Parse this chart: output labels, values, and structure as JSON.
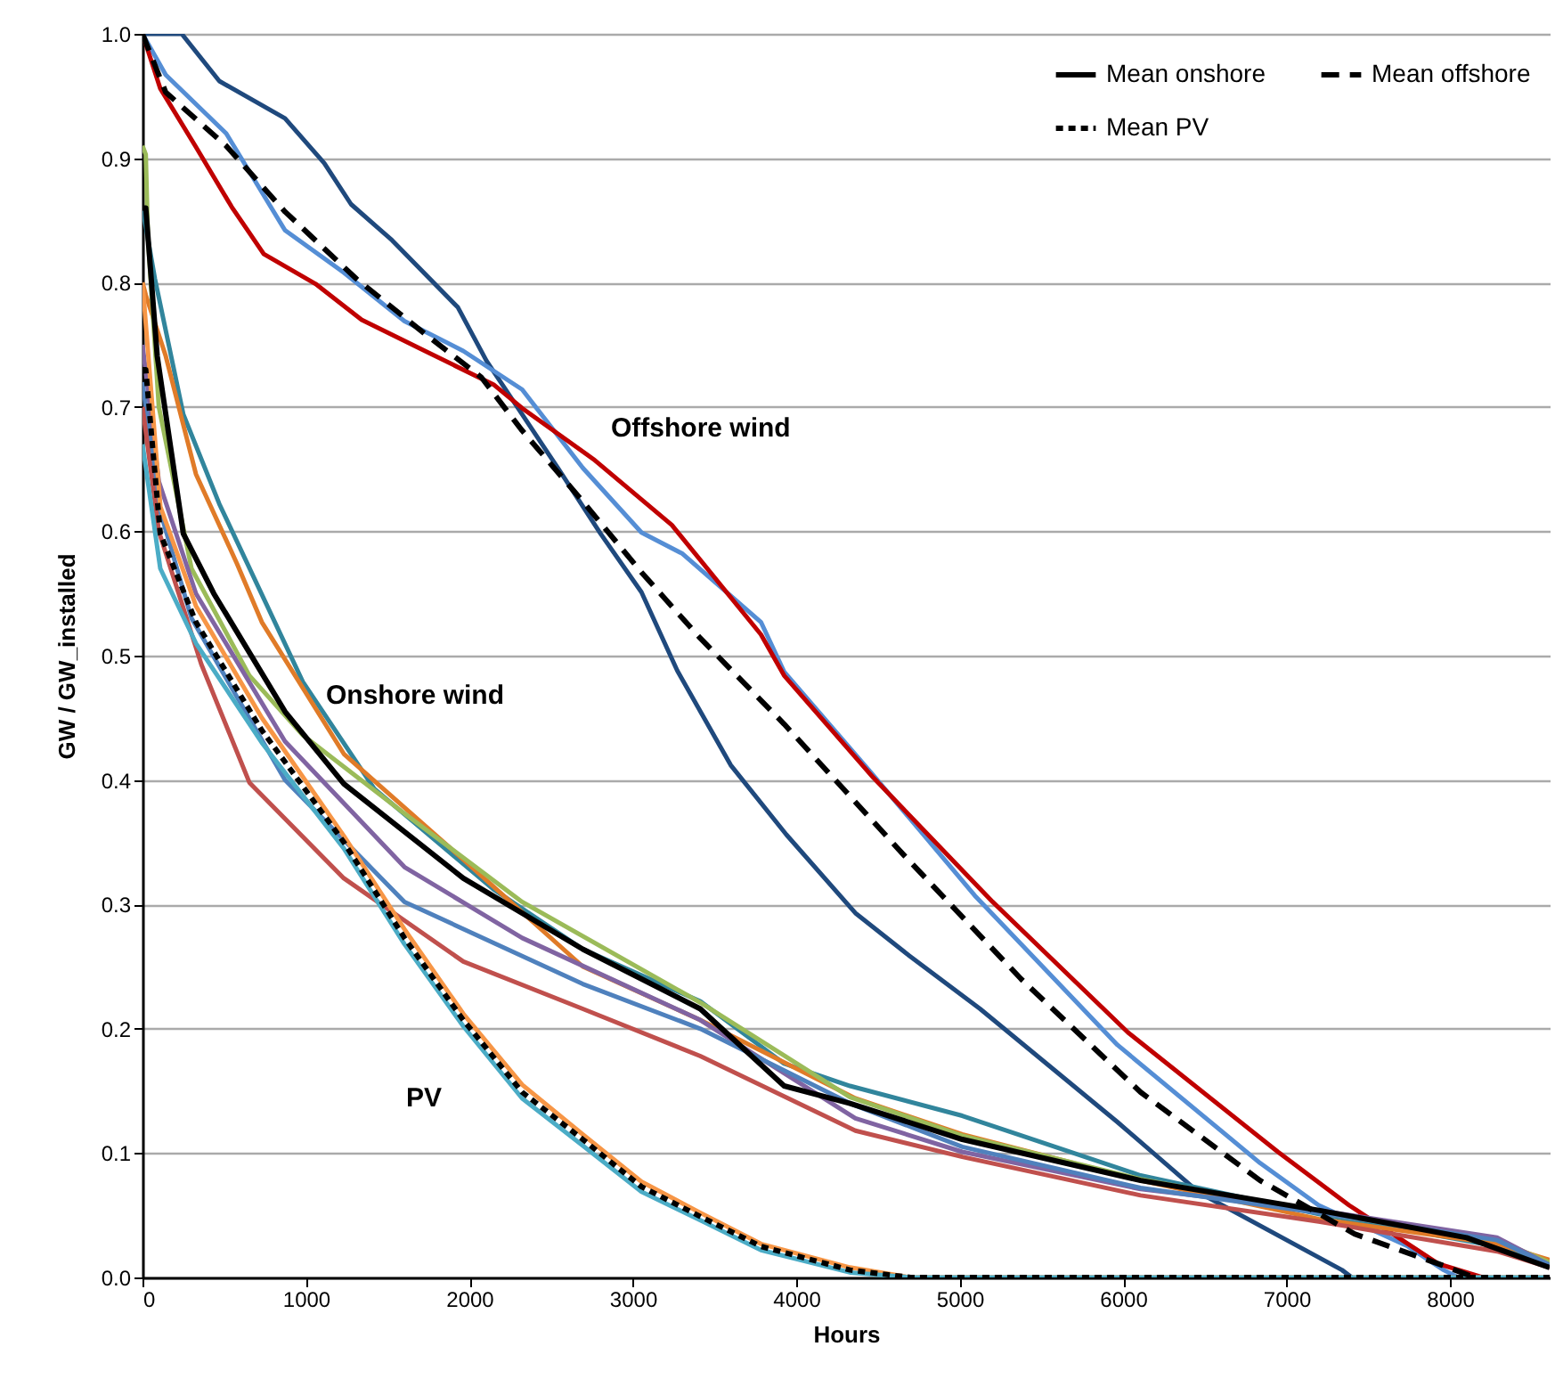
{
  "chart_data": {
    "type": "line",
    "xlabel": "Hours",
    "ylabel": "GW / GW_installed",
    "xlim": [
      0,
      8610
    ],
    "ylim": [
      0,
      1
    ],
    "xticks": [
      0,
      1000,
      2000,
      3000,
      4000,
      5000,
      6000,
      7000,
      8000
    ],
    "yticks": [
      {
        "value": 0,
        "label": "0.0"
      },
      0.1,
      0.2,
      0.3,
      0.4,
      0.5,
      0.6,
      0.7,
      0.8,
      0.9,
      {
        "value": 1,
        "label": "1.0"
      }
    ],
    "grid": "y",
    "legend": "top right",
    "annotations": [
      "Offshore wind",
      "Onshore wind",
      "PV"
    ],
    "series": [
      {
        "color": "#1f497d",
        "x": [
          0,
          240,
          470,
          872,
          1112,
          1276,
          1527,
          1930,
          2105,
          2323,
          2541,
          2803,
          3053,
          3272,
          3599,
          3940,
          4362,
          4689,
          5125,
          5965,
          6467,
          7339,
          7400
        ],
        "values": [
          1,
          1,
          0.962,
          0.932,
          0.896,
          0.863,
          0.834,
          0.78,
          0.737,
          0.694,
          0.651,
          0.598,
          0.551,
          0.488,
          0.412,
          0.356,
          0.293,
          0.259,
          0.216,
          0.125,
          0.068,
          0.006,
          0
        ]
      },
      {
        "color": "#558ed5",
        "x": [
          0,
          142,
          512,
          872,
          1232,
          1603,
          1963,
          2323,
          2694,
          3053,
          3304,
          3784,
          3926,
          4471,
          5093,
          5965,
          6838,
          7197,
          7743,
          7961,
          8050
        ],
        "values": [
          1,
          0.967,
          0.92,
          0.842,
          0.808,
          0.769,
          0.745,
          0.714,
          0.651,
          0.599,
          0.582,
          0.527,
          0.487,
          0.404,
          0.307,
          0.187,
          0.092,
          0.058,
          0.025,
          0.006,
          0
        ]
      },
      {
        "color": "#c00000",
        "x": [
          0,
          109,
          327,
          545,
          742,
          1058,
          1341,
          1712,
          2148,
          2323,
          2759,
          3239,
          3784,
          3926,
          4471,
          5202,
          6030,
          6947,
          7383,
          7928,
          8200
        ],
        "values": [
          1,
          0.956,
          0.909,
          0.861,
          0.823,
          0.799,
          0.77,
          0.746,
          0.718,
          0.699,
          0.658,
          0.605,
          0.517,
          0.484,
          0.402,
          0.302,
          0.197,
          0.101,
          0.058,
          0.011,
          0
        ]
      },
      {
        "color": "#31859c",
        "x": [
          0,
          76,
          250,
          470,
          981,
          1418,
          2148,
          2694,
          3413,
          3926,
          4329,
          5016,
          6107,
          7197,
          8288,
          8610
        ],
        "values": [
          0.86,
          0.803,
          0.694,
          0.622,
          0.479,
          0.393,
          0.312,
          0.264,
          0.222,
          0.172,
          0.154,
          0.13,
          0.082,
          0.051,
          0.025,
          0.012
        ]
      },
      {
        "color": "#e07b28",
        "x": [
          0,
          20,
          142,
          327,
          578,
          730,
          1232,
          1963,
          2694,
          3413,
          4362,
          5016,
          6107,
          7197,
          8288,
          8610
        ],
        "values": [
          0.8,
          0.79,
          0.741,
          0.646,
          0.574,
          0.527,
          0.421,
          0.336,
          0.25,
          0.207,
          0.144,
          0.115,
          0.078,
          0.047,
          0.027,
          0.014
        ]
      },
      {
        "color": "#9bbb59",
        "x": [
          0,
          20,
          33,
          100,
          300,
          654,
          981,
          1603,
          2323,
          3413,
          4329,
          5016,
          6107,
          7197,
          8288,
          8610
        ],
        "values": [
          0.91,
          0.903,
          0.837,
          0.7,
          0.57,
          0.484,
          0.436,
          0.373,
          0.302,
          0.221,
          0.145,
          0.114,
          0.079,
          0.052,
          0.03,
          0.012
        ]
      },
      {
        "color": "#8064a2",
        "x": [
          0,
          100,
          327,
          872,
          1603,
          2323,
          3413,
          4362,
          5016,
          6107,
          7197,
          8288,
          8610
        ],
        "values": [
          0.75,
          0.64,
          0.55,
          0.431,
          0.33,
          0.273,
          0.207,
          0.128,
          0.101,
          0.071,
          0.054,
          0.032,
          0.01
        ]
      },
      {
        "color": "#4f81bd",
        "x": [
          0,
          100,
          300,
          872,
          1603,
          2694,
          3413,
          4329,
          5016,
          6107,
          7197,
          8288,
          8610
        ],
        "values": [
          0.72,
          0.62,
          0.53,
          0.4,
          0.302,
          0.236,
          0.2,
          0.14,
          0.105,
          0.072,
          0.052,
          0.03,
          0.01
        ]
      },
      {
        "color": "#c0504d",
        "x": [
          0,
          100,
          360,
          654,
          1232,
          1963,
          2694,
          3413,
          4362,
          5016,
          6107,
          7197,
          8288,
          8610
        ],
        "values": [
          0.7,
          0.6,
          0.493,
          0.398,
          0.321,
          0.254,
          0.216,
          0.178,
          0.118,
          0.097,
          0.066,
          0.045,
          0.021,
          0.008
        ]
      },
      {
        "color": "#f79646",
        "x": [
          0,
          109,
          327,
          730,
          1232,
          1603,
          1963,
          2323,
          2694,
          3053,
          3413,
          3784,
          4329,
          4700,
          8610
        ],
        "values": [
          0.8,
          0.62,
          0.54,
          0.45,
          0.355,
          0.28,
          0.212,
          0.155,
          0.115,
          0.077,
          0.052,
          0.027,
          0.008,
          0,
          0
        ]
      },
      {
        "color": "#4bacc6",
        "x": [
          0,
          109,
          327,
          730,
          1232,
          1603,
          1963,
          2323,
          2694,
          3053,
          3413,
          3784,
          4329,
          4700,
          8610
        ],
        "values": [
          0.67,
          0.57,
          0.51,
          0.43,
          0.345,
          0.268,
          0.202,
          0.144,
          0.106,
          0.069,
          0.046,
          0.022,
          0.004,
          0,
          0
        ]
      },
      {
        "name": "Mean onshore",
        "color": "#000000",
        "line_style": "solid",
        "x": [
          0,
          20,
          90,
          250,
          436,
          872,
          1232,
          1963,
          2694,
          3413,
          3926,
          4329,
          5016,
          6107,
          7197,
          8102,
          8610
        ],
        "values": [
          0.86,
          0.86,
          0.741,
          0.598,
          0.55,
          0.455,
          0.397,
          0.321,
          0.264,
          0.216,
          0.154,
          0.14,
          0.111,
          0.078,
          0.054,
          0.032,
          0.008
        ]
      },
      {
        "name": "Mean offshore",
        "color": "#000000",
        "line_style": "dashed",
        "x": [
          0,
          142,
          512,
          872,
          1309,
          1745,
          2072,
          2323,
          2694,
          3053,
          3413,
          3926,
          4656,
          5376,
          6107,
          6838,
          7416,
          7928,
          8150
        ],
        "values": [
          1,
          0.953,
          0.91,
          0.857,
          0.803,
          0.757,
          0.724,
          0.681,
          0.624,
          0.567,
          0.514,
          0.445,
          0.34,
          0.24,
          0.149,
          0.078,
          0.035,
          0.011,
          0
        ]
      },
      {
        "name": "Mean PV",
        "color": "#000000",
        "line_style": "dotted",
        "x": [
          0,
          20,
          109,
          327,
          730,
          1232,
          1603,
          1963,
          2323,
          2694,
          3053,
          3413,
          3784,
          4329,
          4700,
          8610
        ],
        "values": [
          0.73,
          0.73,
          0.598,
          0.527,
          0.44,
          0.35,
          0.273,
          0.207,
          0.149,
          0.111,
          0.073,
          0.049,
          0.025,
          0.006,
          0,
          0
        ]
      }
    ]
  }
}
